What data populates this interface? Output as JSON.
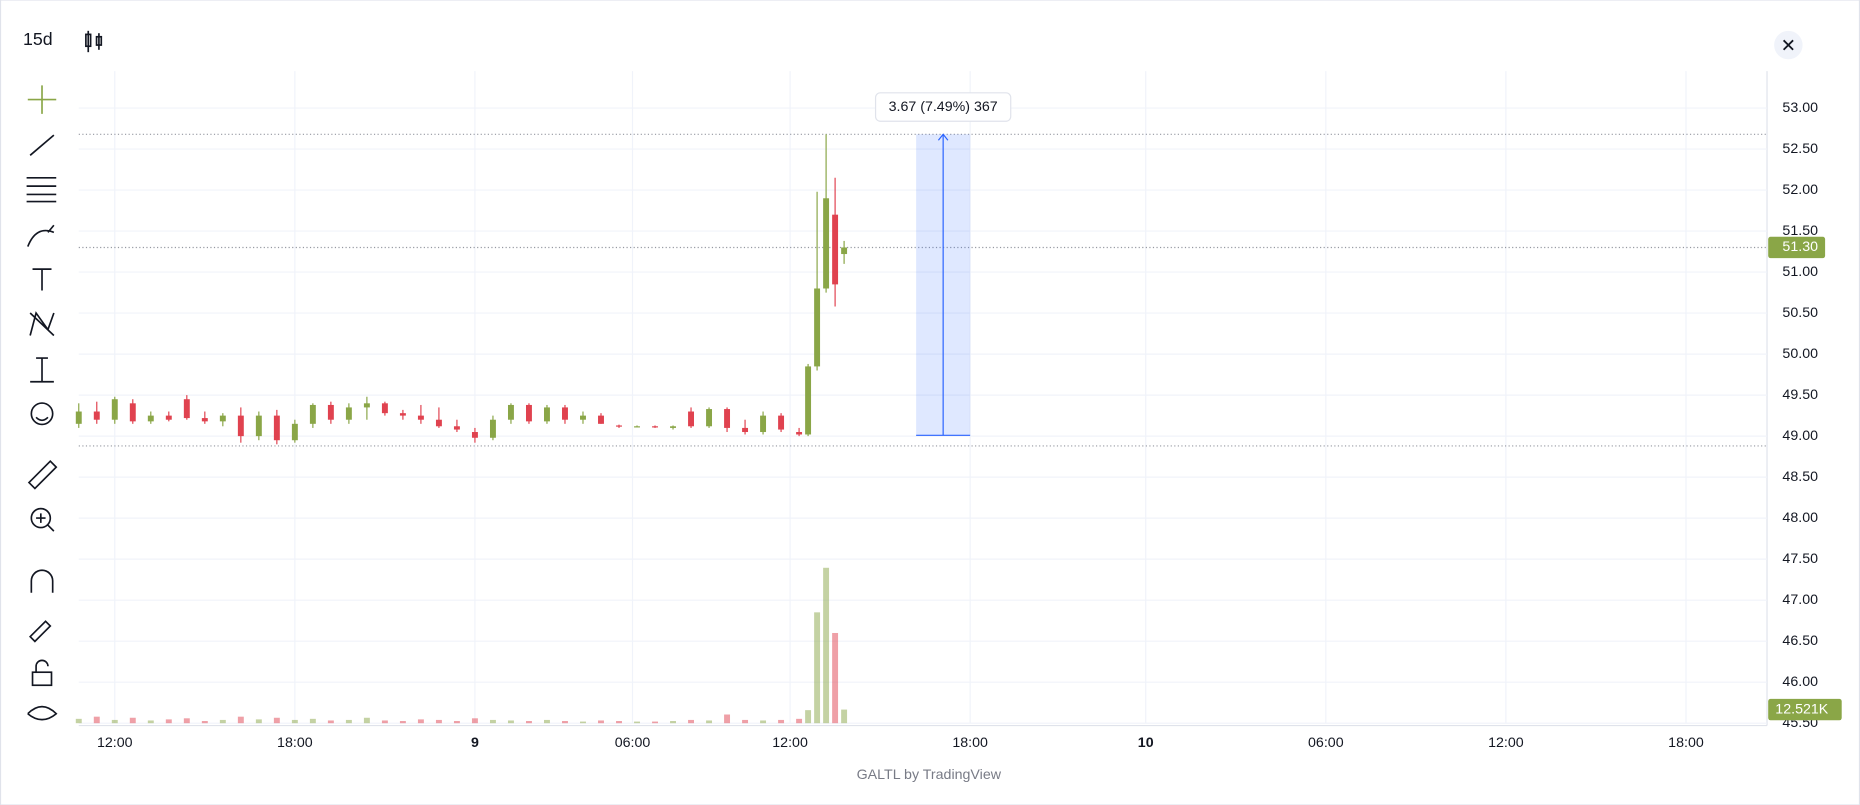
{
  "toolbar": {
    "interval": "15d"
  },
  "watermark": "GALTL by TradingView",
  "chart_data": {
    "type": "candlestick",
    "up_color": "#8aa647",
    "down_color": "#e0424f",
    "grid": true,
    "ylim": [
      45.5,
      53.45
    ],
    "yticks": [
      {
        "value": 45.5,
        "label": "45.50"
      },
      {
        "value": 46,
        "label": "46.00"
      },
      {
        "value": 46.5,
        "label": "46.50"
      },
      {
        "value": 47,
        "label": "47.00"
      },
      {
        "value": 47.5,
        "label": "47.50"
      },
      {
        "value": 48,
        "label": "48.00"
      },
      {
        "value": 48.5,
        "label": "48.50"
      },
      {
        "value": 49,
        "label": "49.00"
      },
      {
        "value": 49.5,
        "label": "49.50"
      },
      {
        "value": 50,
        "label": "50.00"
      },
      {
        "value": 50.5,
        "label": "50.50"
      },
      {
        "value": 51,
        "label": "51.00"
      },
      {
        "value": 51.5,
        "label": "51.50"
      },
      {
        "value": 52,
        "label": "52.00"
      },
      {
        "value": 52.5,
        "label": "52.50"
      },
      {
        "value": 53,
        "label": "53.00"
      }
    ],
    "xlim": [
      0,
      375
    ],
    "xticks": [
      {
        "value": 8,
        "label": "12:00"
      },
      {
        "value": 48,
        "label": "18:00"
      },
      {
        "value": 88,
        "label": "9"
      },
      {
        "value": 123,
        "label": "06:00"
      },
      {
        "value": 158,
        "label": "12:00"
      },
      {
        "value": 198,
        "label": "18:00"
      },
      {
        "value": 237,
        "label": "10"
      },
      {
        "value": 277,
        "label": "06:00"
      },
      {
        "value": 317,
        "label": "12:00"
      },
      {
        "value": 357,
        "label": "18:00"
      }
    ],
    "vlim": [
      0,
      600000
    ],
    "x": [
      0,
      4,
      8,
      12,
      16,
      20,
      24,
      28,
      32,
      36,
      40,
      44,
      48,
      52,
      56,
      60,
      64,
      68,
      72,
      76,
      80,
      84,
      88,
      92,
      96,
      100,
      104,
      108,
      112,
      116,
      120,
      124,
      128,
      132,
      136,
      140,
      144,
      148,
      152,
      156,
      160,
      162,
      164,
      166,
      168,
      170
    ],
    "open": [
      49.15,
      49.3,
      49.2,
      49.4,
      49.18,
      49.25,
      49.45,
      49.22,
      49.18,
      49.25,
      49.0,
      49.25,
      48.95,
      49.15,
      49.38,
      49.2,
      49.35,
      49.4,
      49.28,
      49.25,
      49.2,
      49.12,
      49.05,
      48.98,
      49.2,
      49.38,
      49.18,
      49.35,
      49.2,
      49.25,
      49.13,
      49.12,
      49.12,
      49.1,
      49.3,
      49.12,
      49.33,
      49.1,
      49.05,
      49.25,
      49.05,
      49.02,
      49.85,
      50.8,
      51.7,
      51.22
    ],
    "high": [
      49.4,
      49.42,
      49.48,
      49.45,
      49.3,
      49.3,
      49.5,
      49.3,
      49.28,
      49.35,
      49.3,
      49.32,
      49.2,
      49.4,
      49.42,
      49.4,
      49.48,
      49.42,
      49.32,
      49.38,
      49.35,
      49.2,
      49.1,
      49.25,
      49.4,
      49.4,
      49.38,
      49.38,
      49.3,
      49.28,
      49.14,
      49.13,
      49.13,
      49.13,
      49.35,
      49.35,
      49.35,
      49.2,
      49.3,
      49.28,
      49.1,
      49.88,
      51.98,
      52.68,
      52.15,
      51.38
    ],
    "low": [
      49.1,
      49.15,
      49.15,
      49.15,
      49.15,
      49.18,
      49.2,
      49.15,
      49.12,
      48.92,
      48.95,
      48.9,
      48.92,
      49.1,
      49.15,
      49.15,
      49.2,
      49.25,
      49.2,
      49.15,
      49.1,
      49.05,
      48.92,
      48.95,
      49.15,
      49.15,
      49.15,
      49.15,
      49.15,
      49.15,
      49.1,
      49.11,
      49.1,
      49.08,
      49.1,
      49.1,
      49.05,
      49.02,
      49.02,
      49.05,
      49.0,
      49.0,
      49.8,
      50.75,
      50.58,
      51.1
    ],
    "close": [
      49.3,
      49.2,
      49.45,
      49.18,
      49.25,
      49.2,
      49.22,
      49.18,
      49.25,
      49.0,
      49.25,
      48.95,
      49.15,
      49.38,
      49.2,
      49.35,
      49.4,
      49.28,
      49.25,
      49.2,
      49.12,
      49.08,
      48.98,
      49.2,
      49.38,
      49.18,
      49.35,
      49.2,
      49.25,
      49.15,
      49.12,
      49.12,
      49.11,
      49.12,
      49.12,
      49.33,
      49.1,
      49.05,
      49.25,
      49.08,
      49.02,
      49.85,
      50.8,
      51.9,
      50.85,
      51.3
    ],
    "volume": [
      4000,
      6000,
      3000,
      5000,
      2500,
      3500,
      4500,
      2000,
      3000,
      6000,
      3500,
      5000,
      3000,
      4000,
      2500,
      3000,
      5000,
      2500,
      2000,
      3500,
      3000,
      2000,
      4500,
      3000,
      2500,
      2000,
      3000,
      2000,
      1500,
      2500,
      2000,
      1500,
      1500,
      2000,
      3000,
      2500,
      8000,
      3000,
      2500,
      3000,
      4000,
      12000,
      102000,
      143000,
      83000,
      12521
    ],
    "last_price": {
      "value": 51.3,
      "label": "51.30"
    },
    "last_volume": {
      "value": 12521,
      "label": "12.521K"
    },
    "high_line": 52.68,
    "low_line": 48.88,
    "measure": {
      "label": "3.67 (7.49%) 367",
      "from": 49.01,
      "to": 52.68,
      "x0": 186,
      "x1": 198
    }
  }
}
